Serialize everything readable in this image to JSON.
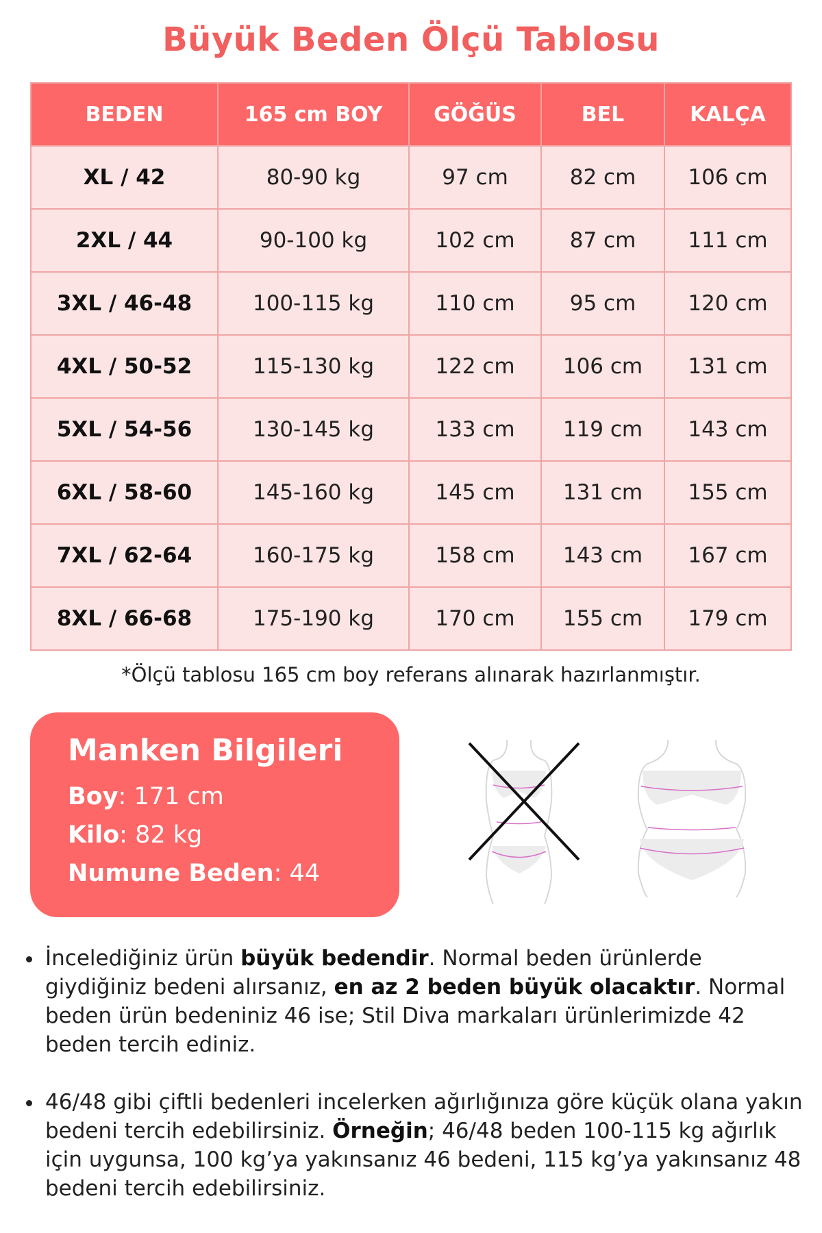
{
  "title": "Büyük Beden Ölçü Tablosu",
  "table": {
    "headers": [
      "BEDEN",
      "165 cm BOY",
      "GÖĞÜS",
      "BEL",
      "KALÇA"
    ],
    "rows": [
      [
        "XL / 42",
        "80-90 kg",
        "97 cm",
        "82 cm",
        "106 cm"
      ],
      [
        "2XL / 44",
        "90-100 kg",
        "102 cm",
        "87 cm",
        "111 cm"
      ],
      [
        "3XL / 46-48",
        "100-115 kg",
        "110 cm",
        "95 cm",
        "120 cm"
      ],
      [
        "4XL / 50-52",
        "115-130 kg",
        "122 cm",
        "106 cm",
        "131 cm"
      ],
      [
        "5XL / 54-56",
        "130-145 kg",
        "133 cm",
        "119 cm",
        "143 cm"
      ],
      [
        "6XL / 58-60",
        "145-160 kg",
        "145 cm",
        "131 cm",
        "155 cm"
      ],
      [
        "7XL / 62-64",
        "160-175 kg",
        "158 cm",
        "143 cm",
        "167 cm"
      ],
      [
        "8XL / 66-68",
        "175-190 kg",
        "170 cm",
        "155 cm",
        "179 cm"
      ]
    ]
  },
  "note": "*Ölçü tablosu 165 cm boy referans alınarak hazırlanmıştır.",
  "manken": {
    "title": "Manken Bilgileri",
    "items": [
      {
        "label": "Boy",
        "value": ": 171 cm"
      },
      {
        "label": "Kilo",
        "value": ": 82 kg"
      },
      {
        "label": "Numune Beden",
        "value": ": 44"
      }
    ]
  },
  "colors": {
    "accent": "#fe6767",
    "title": "#f25f5f",
    "cell": "#fde4e4",
    "border": "#f0a5a5"
  },
  "bullets": [
    {
      "segments": [
        "İncelediğiniz ürün ",
        "büyük bedendir",
        ". Normal beden ürünlerde giydiğiniz bedeni alırsanız, ",
        "en az 2 beden büyük olacaktır",
        ". Normal beden ürün bedeniniz 46 ise; Stil Diva markaları ürünlerimizde 42 beden tercih ediniz."
      ]
    },
    {
      "segments": [
        "46/48 gibi çiftli bedenleri incelerken ağırlığınıza göre küçük olana yakın bedeni tercih edebilirsiniz. ",
        "Örneğin",
        "; 46/48 beden 100-115 kg ağırlık için uygunsa, 100 kg’ya yakınsanız 46 bedeni, 115 kg’ya yakınsanız 48 bedeni tercih edebilirsiniz."
      ]
    }
  ]
}
